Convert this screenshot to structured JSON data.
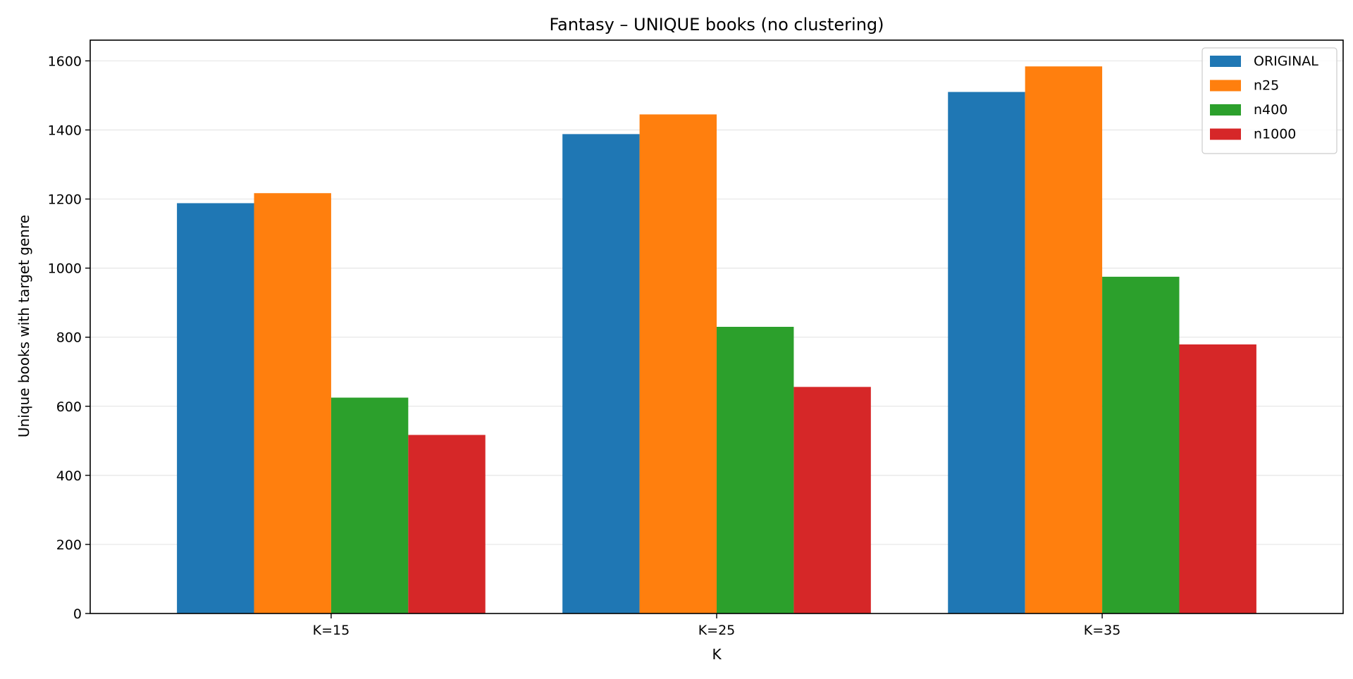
{
  "chart_data": {
    "type": "bar",
    "title": "Fantasy – UNIQUE books (no clustering)",
    "xlabel": "K",
    "ylabel": "Unique books with target genre",
    "categories": [
      "K=15",
      "K=25",
      "K=35"
    ],
    "ylim": [
      0,
      1660
    ],
    "yticks": [
      0,
      200,
      400,
      600,
      800,
      1000,
      1200,
      1400,
      1600
    ],
    "grid": "horizontal",
    "legend_position": "top-right",
    "series": [
      {
        "name": "ORIGINAL",
        "color": "#1f77b4",
        "values": [
          1188,
          1388,
          1510
        ]
      },
      {
        "name": "n25",
        "color": "#ff7f0e",
        "values": [
          1217,
          1445,
          1584
        ]
      },
      {
        "name": "n400",
        "color": "#2ca02c",
        "values": [
          625,
          830,
          975
        ]
      },
      {
        "name": "n1000",
        "color": "#d62728",
        "values": [
          517,
          656,
          779
        ]
      }
    ]
  }
}
